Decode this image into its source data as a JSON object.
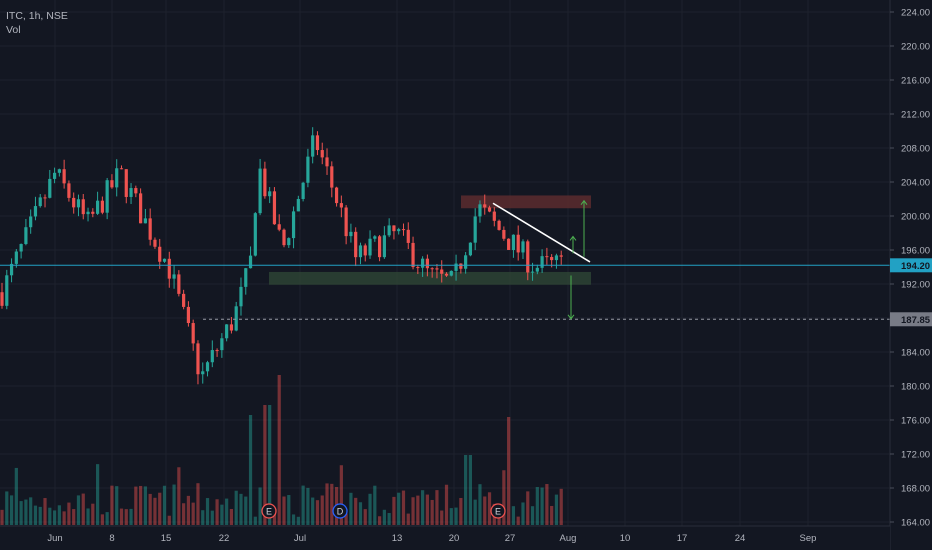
{
  "chart": {
    "symbol": "ITC, 1h, NSE",
    "volume_label": "Vol",
    "last_price_label": "194.20",
    "target_price_label": "187.85",
    "colors": {
      "background": "#131722",
      "up": "#26a69a",
      "down": "#ef5350",
      "grid": "#1e222d",
      "last_price_line": "#22a1c4",
      "last_price_tag": "#22a1c4",
      "target_tag": "#787b86",
      "resistance_zone": "#5c2b2e",
      "support_zone": "#2e4636",
      "trendline": "#ffffff",
      "arrow": "#4caf50",
      "event_marker": "#ef5350",
      "dividend_marker": "#2962ff"
    },
    "event_markers": [
      {
        "label": "E",
        "time": "Jun 28"
      },
      {
        "label": "D",
        "time": "Jul 6"
      },
      {
        "label": "E",
        "time": "Jul 25"
      }
    ]
  },
  "chart_data": {
    "type": "candlestick",
    "title": "",
    "y_axis": {
      "range": [
        163,
        225
      ],
      "ticks": [
        "164.00",
        "168.00",
        "172.00",
        "176.00",
        "180.00",
        "184.00",
        "188.00",
        "192.00",
        "196.00",
        "200.00",
        "204.00",
        "208.00",
        "212.00",
        "216.00",
        "220.00",
        "224.00"
      ]
    },
    "x_axis": {
      "labels": [
        "Jun",
        "8",
        "15",
        "22",
        "Jul",
        "13",
        "20",
        "27",
        "Aug",
        "10",
        "17",
        "24",
        "Sep"
      ]
    },
    "key_points": [
      {
        "time": "late May",
        "price": 190
      },
      {
        "time": "Jun 1",
        "price": 205
      },
      {
        "time": "Jun 5",
        "price": 199
      },
      {
        "time": "Jun 9",
        "price": 205
      },
      {
        "time": "Jun 15",
        "price": 194
      },
      {
        "time": "Jun 19",
        "price": 181
      },
      {
        "time": "Jun 23",
        "price": 188
      },
      {
        "time": "Jun 25",
        "price": 194
      },
      {
        "time": "Jun 26",
        "price": 206
      },
      {
        "time": "Jun 29",
        "price": 196
      },
      {
        "time": "Jul 3",
        "price": 209
      },
      {
        "time": "Jul 6",
        "price": 201
      },
      {
        "time": "Jul 8",
        "price": 195
      },
      {
        "time": "Jul 13",
        "price": 198
      },
      {
        "time": "Jul 17",
        "price": 193
      },
      {
        "time": "Jul 20",
        "price": 192
      },
      {
        "time": "Jul 23",
        "price": 201
      },
      {
        "time": "Jul 27",
        "price": 197
      },
      {
        "time": "Jul 30",
        "price": 194
      },
      {
        "time": "Aug 1",
        "price": 194.2
      }
    ],
    "last_price": 194.2,
    "target_price": 187.85,
    "resistance_zone": {
      "from": 201.5,
      "to": 202.3
    },
    "support_zone": {
      "from": 192.5,
      "to": 193.3
    },
    "trendline": {
      "from": {
        "time": "Jul 23",
        "price": 201.5
      },
      "to": {
        "time": "Aug 3",
        "price": 194.6
      }
    }
  }
}
